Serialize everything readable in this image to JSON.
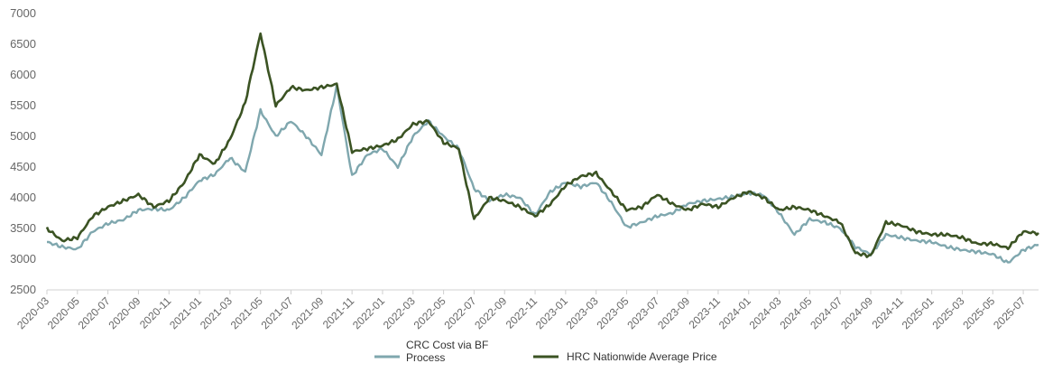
{
  "chart_data": {
    "type": "line",
    "title": "",
    "xlabel": "",
    "ylabel": "",
    "ylim": [
      2500,
      7000
    ],
    "yticks": [
      2500,
      3000,
      3500,
      4000,
      4500,
      5000,
      5500,
      6000,
      6500,
      7000
    ],
    "xlim": [
      "2020-03",
      "2025-08"
    ],
    "x_tick_labels": [
      "2020-03",
      "2020-05",
      "2020-07",
      "2020-09",
      "2020-11",
      "2021-01",
      "2021-03",
      "2021-05",
      "2021-07",
      "2021-09",
      "2021-11",
      "2022-01",
      "2022-03",
      "2022-05",
      "2022-07",
      "2022-09",
      "2022-11",
      "2023-01",
      "2023-03",
      "2023-05",
      "2023-07",
      "2023-09",
      "2023-11",
      "2024-01",
      "2024-03",
      "2024-05",
      "2024-07",
      "2024-09",
      "2024-11",
      "2025-01",
      "2025-03",
      "2025-05",
      "2025-07"
    ],
    "grid": false,
    "legend_position": "bottom-center",
    "series": [
      {
        "name": "CRC Cost via BF Process",
        "color": "#7fa7ae",
        "points": [
          [
            "2020-03",
            3280
          ],
          [
            "2020-04",
            3200
          ],
          [
            "2020-05",
            3160
          ],
          [
            "2020-06",
            3450
          ],
          [
            "2020-07",
            3580
          ],
          [
            "2020-08",
            3640
          ],
          [
            "2020-09",
            3800
          ],
          [
            "2020-10",
            3820
          ],
          [
            "2020-11",
            3800
          ],
          [
            "2020-12",
            4000
          ],
          [
            "2021-01",
            4280
          ],
          [
            "2021-02",
            4380
          ],
          [
            "2021-03",
            4650
          ],
          [
            "2021-04",
            4420
          ],
          [
            "2021-05",
            5420
          ],
          [
            "2021-06",
            5000
          ],
          [
            "2021-07",
            5250
          ],
          [
            "2021-08",
            5000
          ],
          [
            "2021-09",
            4700
          ],
          [
            "2021-10",
            5820
          ],
          [
            "2021-11",
            4350
          ],
          [
            "2021-12",
            4700
          ],
          [
            "2022-01",
            4800
          ],
          [
            "2022-02",
            4500
          ],
          [
            "2022-03",
            5000
          ],
          [
            "2022-04",
            5250
          ],
          [
            "2022-05",
            5000
          ],
          [
            "2022-06",
            4800
          ],
          [
            "2022-07",
            4150
          ],
          [
            "2022-08",
            3950
          ],
          [
            "2022-09",
            4050
          ],
          [
            "2022-10",
            4000
          ],
          [
            "2022-11",
            3720
          ],
          [
            "2022-12",
            4100
          ],
          [
            "2023-01",
            4250
          ],
          [
            "2023-02",
            4180
          ],
          [
            "2023-03",
            4250
          ],
          [
            "2023-04",
            3920
          ],
          [
            "2023-05",
            3520
          ],
          [
            "2023-06",
            3600
          ],
          [
            "2023-07",
            3700
          ],
          [
            "2023-08",
            3750
          ],
          [
            "2023-09",
            3900
          ],
          [
            "2023-10",
            3950
          ],
          [
            "2023-11",
            3980
          ],
          [
            "2023-12",
            4020
          ],
          [
            "2024-01",
            4080
          ],
          [
            "2024-02",
            4040
          ],
          [
            "2024-03",
            3750
          ],
          [
            "2024-04",
            3400
          ],
          [
            "2024-05",
            3650
          ],
          [
            "2024-06",
            3600
          ],
          [
            "2024-07",
            3500
          ],
          [
            "2024-08",
            3200
          ],
          [
            "2024-09",
            3080
          ],
          [
            "2024-10",
            3400
          ],
          [
            "2024-11",
            3350
          ],
          [
            "2024-12",
            3300
          ],
          [
            "2025-01",
            3280
          ],
          [
            "2025-02",
            3200
          ],
          [
            "2025-03",
            3150
          ],
          [
            "2025-04",
            3120
          ],
          [
            "2025-05",
            3080
          ],
          [
            "2025-06",
            2940
          ],
          [
            "2025-07",
            3150
          ],
          [
            "2025-08",
            3240
          ]
        ]
      },
      {
        "name": "HRC Nationwide Average Price",
        "color": "#3b5323",
        "points": [
          [
            "2020-03",
            3500
          ],
          [
            "2020-04",
            3300
          ],
          [
            "2020-05",
            3350
          ],
          [
            "2020-06",
            3700
          ],
          [
            "2020-07",
            3850
          ],
          [
            "2020-08",
            3950
          ],
          [
            "2020-09",
            4050
          ],
          [
            "2020-10",
            3850
          ],
          [
            "2020-11",
            3950
          ],
          [
            "2020-12",
            4250
          ],
          [
            "2021-01",
            4700
          ],
          [
            "2021-02",
            4550
          ],
          [
            "2021-03",
            4950
          ],
          [
            "2021-04",
            5550
          ],
          [
            "2021-05",
            6680
          ],
          [
            "2021-06",
            5500
          ],
          [
            "2021-07",
            5800
          ],
          [
            "2021-08",
            5750
          ],
          [
            "2021-09",
            5800
          ],
          [
            "2021-10",
            5850
          ],
          [
            "2021-11",
            4750
          ],
          [
            "2021-12",
            4800
          ],
          [
            "2022-01",
            4850
          ],
          [
            "2022-02",
            4950
          ],
          [
            "2022-03",
            5200
          ],
          [
            "2022-04",
            5250
          ],
          [
            "2022-05",
            4900
          ],
          [
            "2022-06",
            4800
          ],
          [
            "2022-07",
            3650
          ],
          [
            "2022-08",
            4000
          ],
          [
            "2022-09",
            3950
          ],
          [
            "2022-10",
            3850
          ],
          [
            "2022-11",
            3700
          ],
          [
            "2022-12",
            3900
          ],
          [
            "2023-01",
            4200
          ],
          [
            "2023-02",
            4350
          ],
          [
            "2023-03",
            4400
          ],
          [
            "2023-04",
            4100
          ],
          [
            "2023-05",
            3800
          ],
          [
            "2023-06",
            3850
          ],
          [
            "2023-07",
            4050
          ],
          [
            "2023-08",
            3900
          ],
          [
            "2023-09",
            3800
          ],
          [
            "2023-10",
            3900
          ],
          [
            "2023-11",
            3850
          ],
          [
            "2023-12",
            4000
          ],
          [
            "2024-01",
            4100
          ],
          [
            "2024-02",
            4000
          ],
          [
            "2024-03",
            3800
          ],
          [
            "2024-04",
            3850
          ],
          [
            "2024-05",
            3800
          ],
          [
            "2024-06",
            3700
          ],
          [
            "2024-07",
            3600
          ],
          [
            "2024-08",
            3100
          ],
          [
            "2024-09",
            3050
          ],
          [
            "2024-10",
            3600
          ],
          [
            "2024-11",
            3550
          ],
          [
            "2024-12",
            3450
          ],
          [
            "2025-01",
            3400
          ],
          [
            "2025-02",
            3400
          ],
          [
            "2025-03",
            3350
          ],
          [
            "2025-04",
            3250
          ],
          [
            "2025-05",
            3250
          ],
          [
            "2025-06",
            3180
          ],
          [
            "2025-07",
            3450
          ],
          [
            "2025-08",
            3420
          ]
        ]
      }
    ]
  }
}
